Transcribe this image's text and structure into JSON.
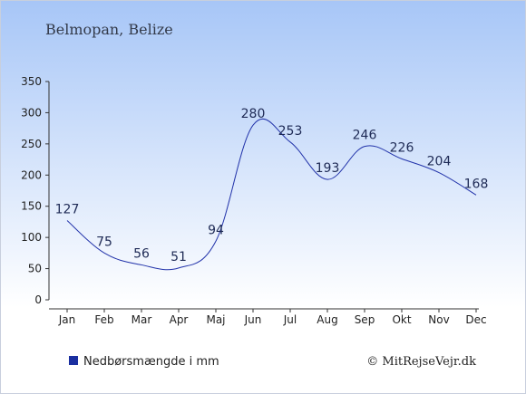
{
  "location_title": "Belmopan, Belize",
  "legend_label": "Nedbørsmængde i mm",
  "copyright": "© MitRejseVejr.dk",
  "colors": {
    "background_top": "#a7c6f7",
    "background_bottom": "#ffffff",
    "line": "#2233aa",
    "legend_swatch": "#1a2fa0",
    "text": "#1e2a55"
  },
  "chart_data": {
    "type": "line",
    "categories": [
      "Jan",
      "Feb",
      "Mar",
      "Apr",
      "Maj",
      "Jun",
      "Jul",
      "Aug",
      "Sep",
      "Okt",
      "Nov",
      "Dec"
    ],
    "series": [
      {
        "name": "Nedbørsmængde i mm",
        "values": [
          127,
          75,
          56,
          51,
          94,
          280,
          253,
          193,
          246,
          226,
          204,
          168
        ]
      }
    ],
    "data_labels": [
      "127",
      "75",
      "56",
      "51",
      "94",
      "280",
      "253",
      "193",
      "246",
      "226",
      "204",
      "168"
    ],
    "y_ticks": [
      "0",
      "50",
      "100",
      "150",
      "200",
      "250",
      "300",
      "350"
    ],
    "ylim": [
      0,
      350
    ],
    "grid": false,
    "legend_position": "bottom-left"
  }
}
